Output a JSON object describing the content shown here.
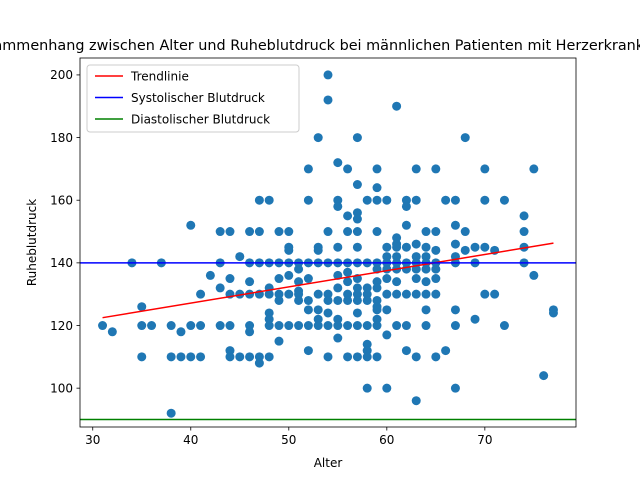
{
  "chart_data": {
    "type": "scatter",
    "title": "Zusammenhang zwischen Alter und Ruheblutdruck bei männlichen Patienten mit Herzerkrankungen",
    "xlabel": "Alter",
    "ylabel": "Ruheblutdruck",
    "xlim": [
      28.7,
      79.3
    ],
    "ylim": [
      87.6,
      205.4
    ],
    "xticks": [
      30,
      40,
      50,
      60,
      70
    ],
    "yticks": [
      100,
      120,
      140,
      160,
      180,
      200
    ],
    "grid": false,
    "legend_position": "top-left",
    "colors": {
      "points": "#1f77b4",
      "trend": "#ff0000",
      "systolic": "#0000ff",
      "diastolic": "#008000"
    },
    "series": [
      {
        "name": "Trendlinie",
        "kind": "line",
        "x": [
          31,
          77
        ],
        "y": [
          122.5,
          146.3
        ]
      },
      {
        "name": "Systolischer Blutdruck",
        "kind": "hline",
        "y": 140
      },
      {
        "name": "Diastolischer Blutdruck",
        "kind": "hline",
        "y": 90
      },
      {
        "kind": "scatter",
        "points": [
          [
            31,
            120
          ],
          [
            32,
            118
          ],
          [
            34,
            140
          ],
          [
            35,
            126
          ],
          [
            35,
            120
          ],
          [
            35,
            110
          ],
          [
            36,
            120
          ],
          [
            37,
            140
          ],
          [
            38,
            92
          ],
          [
            38,
            110
          ],
          [
            38,
            120
          ],
          [
            39,
            118
          ],
          [
            39,
            110
          ],
          [
            40,
            152
          ],
          [
            40,
            120
          ],
          [
            40,
            110
          ],
          [
            41,
            130
          ],
          [
            41,
            120
          ],
          [
            41,
            110
          ],
          [
            42,
            136
          ],
          [
            43,
            150
          ],
          [
            43,
            140
          ],
          [
            43,
            132
          ],
          [
            43,
            120
          ],
          [
            44,
            150
          ],
          [
            44,
            135
          ],
          [
            44,
            130
          ],
          [
            44,
            120
          ],
          [
            44,
            112
          ],
          [
            44,
            110
          ],
          [
            45,
            142
          ],
          [
            45,
            130
          ],
          [
            45,
            110
          ],
          [
            46,
            150
          ],
          [
            46,
            140
          ],
          [
            46,
            134
          ],
          [
            46,
            130
          ],
          [
            46,
            120
          ],
          [
            46,
            118
          ],
          [
            46,
            110
          ],
          [
            47,
            160
          ],
          [
            47,
            150
          ],
          [
            47,
            140
          ],
          [
            47,
            130
          ],
          [
            47,
            110
          ],
          [
            47,
            108
          ],
          [
            48,
            160
          ],
          [
            48,
            140
          ],
          [
            48,
            132
          ],
          [
            48,
            130
          ],
          [
            48,
            124
          ],
          [
            48,
            122
          ],
          [
            48,
            120
          ],
          [
            48,
            110
          ],
          [
            49,
            150
          ],
          [
            49,
            140
          ],
          [
            49,
            135
          ],
          [
            49,
            130
          ],
          [
            49,
            128
          ],
          [
            49,
            120
          ],
          [
            49,
            115
          ],
          [
            50,
            150
          ],
          [
            50,
            145
          ],
          [
            50,
            144
          ],
          [
            50,
            140
          ],
          [
            50,
            136
          ],
          [
            50,
            130
          ],
          [
            50,
            120
          ],
          [
            51,
            140
          ],
          [
            51,
            138
          ],
          [
            51,
            134
          ],
          [
            51,
            131
          ],
          [
            51,
            130
          ],
          [
            51,
            128
          ],
          [
            51,
            120
          ],
          [
            52,
            170
          ],
          [
            52,
            160
          ],
          [
            52,
            140
          ],
          [
            52,
            135
          ],
          [
            52,
            128
          ],
          [
            52,
            125
          ],
          [
            52,
            120
          ],
          [
            52,
            112
          ],
          [
            53,
            180
          ],
          [
            53,
            145
          ],
          [
            53,
            144
          ],
          [
            53,
            140
          ],
          [
            53,
            130
          ],
          [
            53,
            125
          ],
          [
            53,
            122
          ],
          [
            53,
            120
          ],
          [
            54,
            200
          ],
          [
            54,
            192
          ],
          [
            54,
            150
          ],
          [
            54,
            140
          ],
          [
            54,
            130
          ],
          [
            54,
            128
          ],
          [
            54,
            124
          ],
          [
            54,
            120
          ],
          [
            54,
            110
          ],
          [
            55,
            172
          ],
          [
            55,
            160
          ],
          [
            55,
            158
          ],
          [
            55,
            145
          ],
          [
            55,
            140
          ],
          [
            55,
            136
          ],
          [
            55,
            132
          ],
          [
            55,
            128
          ],
          [
            55,
            122
          ],
          [
            55,
            120
          ],
          [
            55,
            116
          ],
          [
            56,
            170
          ],
          [
            56,
            155
          ],
          [
            56,
            150
          ],
          [
            56,
            140
          ],
          [
            56,
            137
          ],
          [
            56,
            134
          ],
          [
            56,
            130
          ],
          [
            56,
            128
          ],
          [
            56,
            120
          ],
          [
            56,
            110
          ],
          [
            57,
            180
          ],
          [
            57,
            165
          ],
          [
            57,
            156
          ],
          [
            57,
            154
          ],
          [
            57,
            150
          ],
          [
            57,
            145
          ],
          [
            57,
            140
          ],
          [
            57,
            135
          ],
          [
            57,
            132
          ],
          [
            57,
            130
          ],
          [
            57,
            128
          ],
          [
            57,
            124
          ],
          [
            57,
            120
          ],
          [
            57,
            110
          ],
          [
            58,
            160
          ],
          [
            58,
            140
          ],
          [
            58,
            132
          ],
          [
            58,
            130
          ],
          [
            58,
            128
          ],
          [
            58,
            120
          ],
          [
            58,
            114
          ],
          [
            58,
            112
          ],
          [
            58,
            110
          ],
          [
            58,
            100
          ],
          [
            59,
            170
          ],
          [
            59,
            164
          ],
          [
            59,
            160
          ],
          [
            59,
            150
          ],
          [
            59,
            140
          ],
          [
            59,
            138
          ],
          [
            59,
            134
          ],
          [
            59,
            132
          ],
          [
            59,
            128
          ],
          [
            59,
            126
          ],
          [
            59,
            125
          ],
          [
            59,
            122
          ],
          [
            59,
            120
          ],
          [
            59,
            110
          ],
          [
            60,
            160
          ],
          [
            60,
            145
          ],
          [
            60,
            142
          ],
          [
            60,
            140
          ],
          [
            60,
            138
          ],
          [
            60,
            135
          ],
          [
            60,
            130
          ],
          [
            60,
            125
          ],
          [
            60,
            117
          ],
          [
            60,
            100
          ],
          [
            61,
            190
          ],
          [
            61,
            148
          ],
          [
            61,
            146
          ],
          [
            61,
            145
          ],
          [
            61,
            142
          ],
          [
            61,
            140
          ],
          [
            61,
            138
          ],
          [
            61,
            134
          ],
          [
            61,
            130
          ],
          [
            61,
            120
          ],
          [
            62,
            160
          ],
          [
            62,
            158
          ],
          [
            62,
            152
          ],
          [
            62,
            145
          ],
          [
            62,
            140
          ],
          [
            62,
            138
          ],
          [
            62,
            130
          ],
          [
            62,
            120
          ],
          [
            62,
            112
          ],
          [
            63,
            170
          ],
          [
            63,
            160
          ],
          [
            63,
            146
          ],
          [
            63,
            142
          ],
          [
            63,
            140
          ],
          [
            63,
            138
          ],
          [
            63,
            135
          ],
          [
            63,
            130
          ],
          [
            63,
            110
          ],
          [
            63,
            96
          ],
          [
            64,
            150
          ],
          [
            64,
            145
          ],
          [
            64,
            142
          ],
          [
            64,
            140
          ],
          [
            64,
            138
          ],
          [
            64,
            134
          ],
          [
            64,
            130
          ],
          [
            64,
            125
          ],
          [
            64,
            120
          ],
          [
            65,
            170
          ],
          [
            65,
            150
          ],
          [
            65,
            144
          ],
          [
            65,
            140
          ],
          [
            65,
            138
          ],
          [
            65,
            135
          ],
          [
            65,
            130
          ],
          [
            65,
            110
          ],
          [
            66,
            160
          ],
          [
            66,
            112
          ],
          [
            67,
            160
          ],
          [
            67,
            152
          ],
          [
            67,
            146
          ],
          [
            67,
            142
          ],
          [
            67,
            140
          ],
          [
            67,
            125
          ],
          [
            67,
            120
          ],
          [
            67,
            100
          ],
          [
            68,
            180
          ],
          [
            68,
            150
          ],
          [
            68,
            144
          ],
          [
            69,
            145
          ],
          [
            69,
            140
          ],
          [
            69,
            122
          ],
          [
            70,
            170
          ],
          [
            70,
            160
          ],
          [
            70,
            145
          ],
          [
            70,
            130
          ],
          [
            71,
            144
          ],
          [
            71,
            130
          ],
          [
            72,
            160
          ],
          [
            72,
            120
          ],
          [
            74,
            155
          ],
          [
            74,
            150
          ],
          [
            74,
            145
          ],
          [
            74,
            140
          ],
          [
            75,
            170
          ],
          [
            75,
            136
          ],
          [
            76,
            104
          ],
          [
            77,
            125
          ],
          [
            77,
            124
          ]
        ]
      }
    ]
  }
}
